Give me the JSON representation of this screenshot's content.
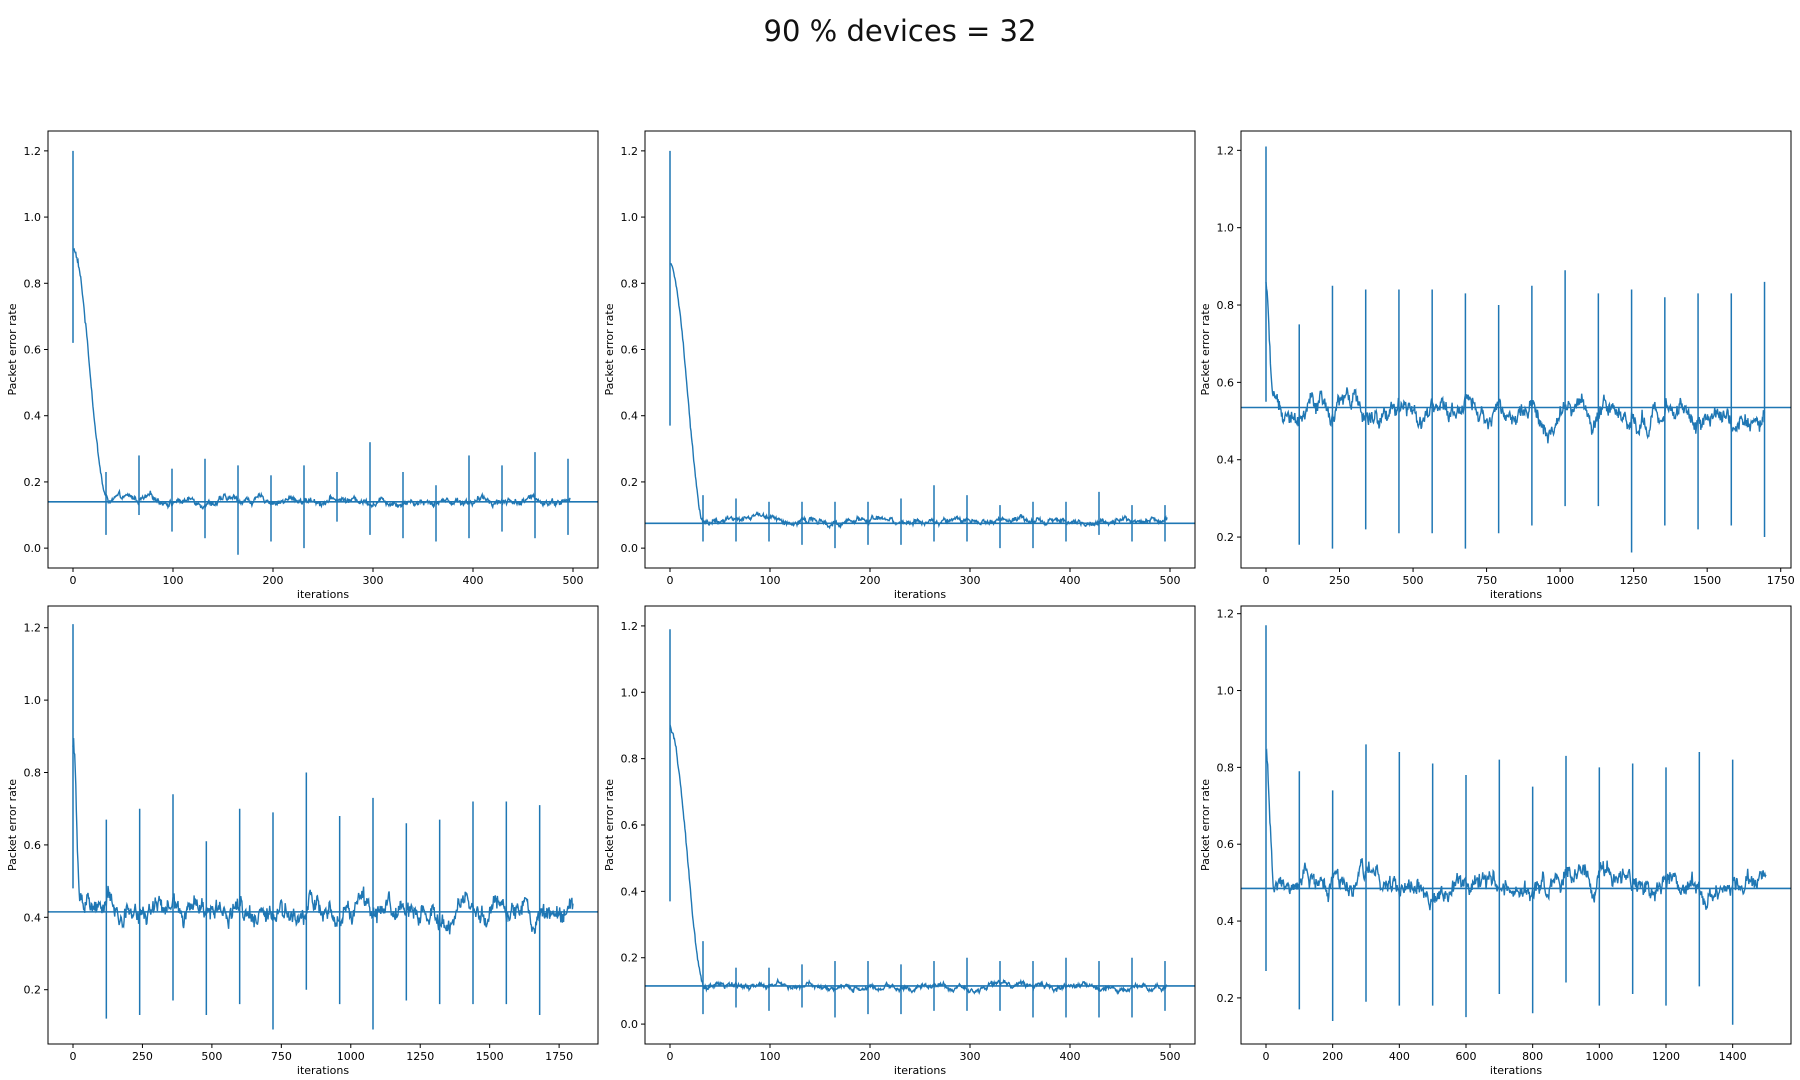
{
  "figure": {
    "title": "90 % devices = 32"
  },
  "chart_data": [
    {
      "type": "line",
      "xlabel": "iterations",
      "ylabel": "Packet error rate",
      "xlim": [
        -25,
        525
      ],
      "ylim": [
        -0.06,
        1.26
      ],
      "xticks": [
        0,
        100,
        200,
        300,
        400,
        500
      ],
      "yticks": [
        0.0,
        0.2,
        0.4,
        0.6,
        0.8,
        1.0,
        1.2
      ],
      "tick_decimals": 1,
      "x_max": 497,
      "hline": 0.14,
      "series": {
        "color": "#1f77b4",
        "start": 0.9,
        "convergence": 0.145,
        "settle_at": 35,
        "noise": 0.012,
        "errorbars": [
          {
            "x": 0,
            "low": 0.62,
            "high": 1.2
          },
          {
            "x": 33,
            "low": 0.04,
            "high": 0.23
          },
          {
            "x": 66,
            "low": 0.1,
            "high": 0.28
          },
          {
            "x": 99,
            "low": 0.05,
            "high": 0.24
          },
          {
            "x": 132,
            "low": 0.03,
            "high": 0.27
          },
          {
            "x": 165,
            "low": -0.02,
            "high": 0.25
          },
          {
            "x": 198,
            "low": 0.02,
            "high": 0.22
          },
          {
            "x": 231,
            "low": 0.0,
            "high": 0.25
          },
          {
            "x": 264,
            "low": 0.08,
            "high": 0.23
          },
          {
            "x": 297,
            "low": 0.04,
            "high": 0.32
          },
          {
            "x": 330,
            "low": 0.03,
            "high": 0.23
          },
          {
            "x": 363,
            "low": 0.02,
            "high": 0.19
          },
          {
            "x": 396,
            "low": 0.03,
            "high": 0.28
          },
          {
            "x": 429,
            "low": 0.05,
            "high": 0.25
          },
          {
            "x": 462,
            "low": 0.03,
            "high": 0.29
          },
          {
            "x": 495,
            "low": 0.04,
            "high": 0.27
          }
        ]
      }
    },
    {
      "type": "line",
      "xlabel": "iterations",
      "ylabel": "Packet error rate",
      "xlim": [
        -25,
        525
      ],
      "ylim": [
        -0.06,
        1.26
      ],
      "xticks": [
        0,
        100,
        200,
        300,
        400,
        500
      ],
      "yticks": [
        0.0,
        0.2,
        0.4,
        0.6,
        0.8,
        1.0,
        1.2
      ],
      "tick_decimals": 1,
      "x_max": 497,
      "hline": 0.075,
      "series": {
        "color": "#1f77b4",
        "start": 0.86,
        "convergence": 0.085,
        "settle_at": 35,
        "noise": 0.01,
        "errorbars": [
          {
            "x": 0,
            "low": 0.37,
            "high": 1.2
          },
          {
            "x": 33,
            "low": 0.02,
            "high": 0.16
          },
          {
            "x": 66,
            "low": 0.02,
            "high": 0.15
          },
          {
            "x": 99,
            "low": 0.02,
            "high": 0.14
          },
          {
            "x": 132,
            "low": 0.01,
            "high": 0.14
          },
          {
            "x": 165,
            "low": 0.0,
            "high": 0.14
          },
          {
            "x": 198,
            "low": 0.01,
            "high": 0.14
          },
          {
            "x": 231,
            "low": 0.01,
            "high": 0.15
          },
          {
            "x": 264,
            "low": 0.02,
            "high": 0.19
          },
          {
            "x": 297,
            "low": 0.02,
            "high": 0.16
          },
          {
            "x": 330,
            "low": 0.0,
            "high": 0.13
          },
          {
            "x": 363,
            "low": 0.0,
            "high": 0.14
          },
          {
            "x": 396,
            "low": 0.02,
            "high": 0.14
          },
          {
            "x": 429,
            "low": 0.04,
            "high": 0.17
          },
          {
            "x": 462,
            "low": 0.02,
            "high": 0.13
          },
          {
            "x": 495,
            "low": 0.02,
            "high": 0.13
          }
        ]
      }
    },
    {
      "type": "line",
      "xlabel": "iterations",
      "ylabel": "Packet error rate",
      "xlim": [
        -85,
        1785
      ],
      "ylim": [
        0.12,
        1.25
      ],
      "xticks": [
        0,
        250,
        500,
        750,
        1000,
        1250,
        1500,
        1750
      ],
      "yticks": [
        0.2,
        0.4,
        0.6,
        0.8,
        1.0,
        1.2
      ],
      "tick_decimals": 1,
      "x_max": 1695,
      "hline": 0.535,
      "series": {
        "color": "#1f77b4",
        "start": 0.86,
        "convergence": 0.525,
        "settle_at": 25,
        "noise": 0.03,
        "errorbars": [
          {
            "x": 0,
            "low": 0.55,
            "high": 1.21
          },
          {
            "x": 113,
            "low": 0.18,
            "high": 0.75
          },
          {
            "x": 226,
            "low": 0.17,
            "high": 0.85
          },
          {
            "x": 339,
            "low": 0.22,
            "high": 0.84
          },
          {
            "x": 452,
            "low": 0.21,
            "high": 0.84
          },
          {
            "x": 565,
            "low": 0.21,
            "high": 0.84
          },
          {
            "x": 678,
            "low": 0.17,
            "high": 0.83
          },
          {
            "x": 791,
            "low": 0.21,
            "high": 0.8
          },
          {
            "x": 904,
            "low": 0.23,
            "high": 0.85
          },
          {
            "x": 1017,
            "low": 0.28,
            "high": 0.89
          },
          {
            "x": 1130,
            "low": 0.28,
            "high": 0.83
          },
          {
            "x": 1243,
            "low": 0.16,
            "high": 0.84
          },
          {
            "x": 1356,
            "low": 0.23,
            "high": 0.82
          },
          {
            "x": 1469,
            "low": 0.22,
            "high": 0.83
          },
          {
            "x": 1582,
            "low": 0.23,
            "high": 0.83
          },
          {
            "x": 1695,
            "low": 0.2,
            "high": 0.86
          }
        ]
      }
    },
    {
      "type": "line",
      "xlabel": "iterations",
      "ylabel": "Packet error rate",
      "xlim": [
        -90,
        1890
      ],
      "ylim": [
        0.05,
        1.26
      ],
      "xticks": [
        0,
        250,
        500,
        750,
        1000,
        1250,
        1500,
        1750
      ],
      "yticks": [
        0.2,
        0.4,
        0.6,
        0.8,
        1.0,
        1.2
      ],
      "tick_decimals": 1,
      "x_max": 1800,
      "hline": 0.415,
      "series": {
        "color": "#1f77b4",
        "start": 0.87,
        "convergence": 0.425,
        "settle_at": 25,
        "noise": 0.035,
        "errorbars": [
          {
            "x": 0,
            "low": 0.48,
            "high": 1.21
          },
          {
            "x": 120,
            "low": 0.12,
            "high": 0.67
          },
          {
            "x": 240,
            "low": 0.13,
            "high": 0.7
          },
          {
            "x": 360,
            "low": 0.17,
            "high": 0.74
          },
          {
            "x": 480,
            "low": 0.13,
            "high": 0.61
          },
          {
            "x": 600,
            "low": 0.16,
            "high": 0.7
          },
          {
            "x": 720,
            "low": 0.09,
            "high": 0.69
          },
          {
            "x": 840,
            "low": 0.2,
            "high": 0.8
          },
          {
            "x": 960,
            "low": 0.16,
            "high": 0.68
          },
          {
            "x": 1080,
            "low": 0.09,
            "high": 0.73
          },
          {
            "x": 1200,
            "low": 0.17,
            "high": 0.66
          },
          {
            "x": 1320,
            "low": 0.16,
            "high": 0.67
          },
          {
            "x": 1440,
            "low": 0.16,
            "high": 0.72
          },
          {
            "x": 1560,
            "low": 0.16,
            "high": 0.72
          },
          {
            "x": 1680,
            "low": 0.13,
            "high": 0.71
          }
        ]
      }
    },
    {
      "type": "line",
      "xlabel": "iterations",
      "ylabel": "Packet error rate",
      "xlim": [
        -25,
        525
      ],
      "ylim": [
        -0.06,
        1.26
      ],
      "xticks": [
        0,
        100,
        200,
        300,
        400,
        500
      ],
      "yticks": [
        0.0,
        0.2,
        0.4,
        0.6,
        0.8,
        1.0,
        1.2
      ],
      "tick_decimals": 1,
      "x_max": 497,
      "hline": 0.115,
      "series": {
        "color": "#1f77b4",
        "start": 0.89,
        "convergence": 0.112,
        "settle_at": 35,
        "noise": 0.01,
        "errorbars": [
          {
            "x": 0,
            "low": 0.37,
            "high": 1.19
          },
          {
            "x": 33,
            "low": 0.03,
            "high": 0.25
          },
          {
            "x": 66,
            "low": 0.05,
            "high": 0.17
          },
          {
            "x": 99,
            "low": 0.04,
            "high": 0.17
          },
          {
            "x": 132,
            "low": 0.05,
            "high": 0.18
          },
          {
            "x": 165,
            "low": 0.02,
            "high": 0.19
          },
          {
            "x": 198,
            "low": 0.03,
            "high": 0.19
          },
          {
            "x": 231,
            "low": 0.03,
            "high": 0.18
          },
          {
            "x": 264,
            "low": 0.04,
            "high": 0.19
          },
          {
            "x": 297,
            "low": 0.04,
            "high": 0.2
          },
          {
            "x": 330,
            "low": 0.04,
            "high": 0.19
          },
          {
            "x": 363,
            "low": 0.02,
            "high": 0.19
          },
          {
            "x": 396,
            "low": 0.02,
            "high": 0.2
          },
          {
            "x": 429,
            "low": 0.02,
            "high": 0.19
          },
          {
            "x": 462,
            "low": 0.02,
            "high": 0.2
          },
          {
            "x": 495,
            "low": 0.04,
            "high": 0.19
          }
        ]
      }
    },
    {
      "type": "line",
      "xlabel": "iterations",
      "ylabel": "Packet error rate",
      "xlim": [
        -75,
        1575
      ],
      "ylim": [
        0.08,
        1.22
      ],
      "xticks": [
        0,
        200,
        400,
        600,
        800,
        1000,
        1200,
        1400
      ],
      "yticks": [
        0.2,
        0.4,
        0.6,
        0.8,
        1.0,
        1.2
      ],
      "tick_decimals": 1,
      "x_max": 1500,
      "hline": 0.485,
      "series": {
        "color": "#1f77b4",
        "start": 0.84,
        "convergence": 0.495,
        "settle_at": 25,
        "noise": 0.03,
        "errorbars": [
          {
            "x": 0,
            "low": 0.27,
            "high": 1.17
          },
          {
            "x": 100,
            "low": 0.17,
            "high": 0.79
          },
          {
            "x": 200,
            "low": 0.14,
            "high": 0.74
          },
          {
            "x": 300,
            "low": 0.19,
            "high": 0.86
          },
          {
            "x": 400,
            "low": 0.18,
            "high": 0.84
          },
          {
            "x": 500,
            "low": 0.18,
            "high": 0.81
          },
          {
            "x": 600,
            "low": 0.15,
            "high": 0.78
          },
          {
            "x": 700,
            "low": 0.21,
            "high": 0.82
          },
          {
            "x": 800,
            "low": 0.16,
            "high": 0.75
          },
          {
            "x": 900,
            "low": 0.24,
            "high": 0.83
          },
          {
            "x": 1000,
            "low": 0.18,
            "high": 0.8
          },
          {
            "x": 1100,
            "low": 0.21,
            "high": 0.81
          },
          {
            "x": 1200,
            "low": 0.18,
            "high": 0.8
          },
          {
            "x": 1300,
            "low": 0.23,
            "high": 0.84
          },
          {
            "x": 1400,
            "low": 0.13,
            "high": 0.82
          }
        ]
      }
    }
  ]
}
